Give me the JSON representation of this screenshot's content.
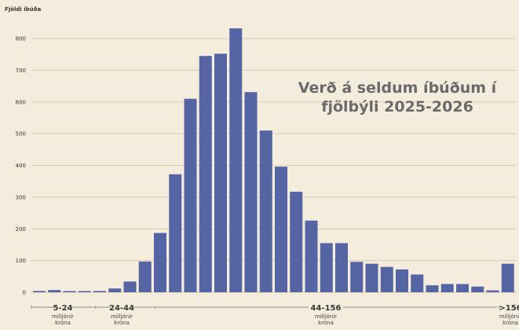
{
  "chart_data": {
    "type": "bar",
    "title_lines": [
      "Verð á seldum íbúðum í",
      "fjölbýli 2025-2026"
    ],
    "ylabel": "Fjöldi íbúða",
    "ylim": [
      0,
      850
    ],
    "yticks": [
      0,
      100,
      200,
      300,
      400,
      500,
      600,
      700,
      800
    ],
    "bar_color": "#5565a3",
    "values": [
      4,
      7,
      1,
      1,
      4,
      12,
      34,
      97,
      187,
      372,
      610,
      745,
      752,
      832,
      631,
      510,
      396,
      317,
      226,
      155,
      155,
      96,
      90,
      80,
      72,
      56,
      22,
      26,
      26,
      18,
      6,
      90
    ],
    "groups": [
      {
        "label": "5-24",
        "sub": [
          "milljónir",
          "króna"
        ]
      },
      {
        "label": "24-44",
        "sub": [
          "milljónir",
          "króna"
        ]
      },
      {
        "label": "44-156",
        "sub": [
          "milljónir",
          "króna"
        ]
      },
      {
        "label": ">156",
        "sub": [
          "milljónir",
          "króna"
        ]
      }
    ]
  }
}
